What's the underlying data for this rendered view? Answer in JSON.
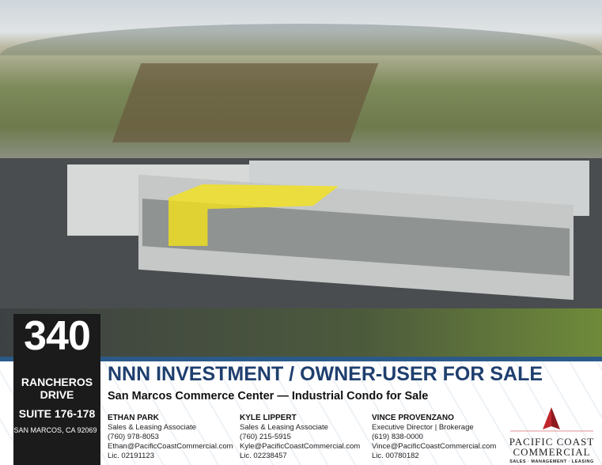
{
  "property": {
    "number": "340",
    "street": "RANCHEROS DRIVE",
    "suite": "SUITE 176-178",
    "city": "SAN MARCOS, CA 92069"
  },
  "headline": "NNN INVESTMENT / OWNER-USER FOR SALE",
  "subtitle": "San Marcos Commerce Center — Industrial Condo for Sale",
  "contacts": [
    {
      "name": "ETHAN PARK",
      "title": "Sales & Leasing Associate",
      "phone": "(760) 978-8053",
      "email": "Ethan@PacificCoastCommercial.com",
      "license": "Lic. 02191123"
    },
    {
      "name": "KYLE LIPPERT",
      "title": "Sales & Leasing Associate",
      "phone": "(760) 215-5915",
      "email": "Kyle@PacificCoastCommercial.com",
      "license": "Lic. 02238457"
    },
    {
      "name": "VINCE PROVENZANO",
      "title": "Executive Director | Brokerage",
      "phone": "(619) 838-0000",
      "email": "Vince@PacificCoastCommercial.com",
      "license": "Lic. 00780182"
    }
  ],
  "logo": {
    "line1": "PACIFIC COAST",
    "line2": "COMMERCIAL",
    "tagline": "SALES · MANAGEMENT · LEASING"
  },
  "colors": {
    "headline": "#1f3f6e",
    "band": "#2c5a88",
    "highlight": "#f2e21a",
    "logo_red": "#c0262c",
    "panel": "#1b1b1b"
  }
}
